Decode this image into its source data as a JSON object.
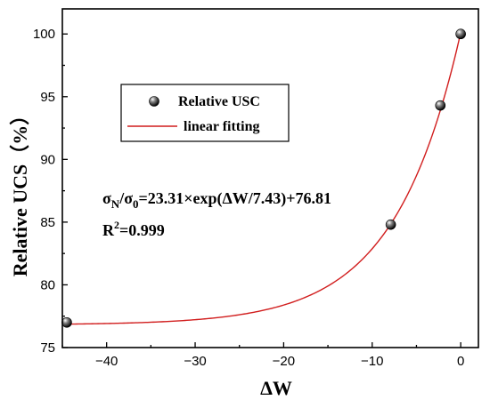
{
  "chart_data": {
    "type": "scatter",
    "title": "",
    "xlabel": "ΔW",
    "ylabel": "Relative UCS（%）",
    "xlim": [
      -45,
      2
    ],
    "ylim": [
      75,
      102
    ],
    "xticks": [
      -40,
      -30,
      -20,
      -10,
      0
    ],
    "yticks": [
      75,
      80,
      85,
      90,
      95,
      100
    ],
    "grid": false,
    "legend": {
      "placement": "upper-left",
      "entries": [
        "Relative USC",
        "linear fitting"
      ]
    },
    "series": [
      {
        "name": "Relative USC",
        "kind": "scatter",
        "color": "#000000",
        "x": [
          -44.5,
          -7.9,
          -2.3,
          0
        ],
        "y": [
          77.0,
          84.8,
          94.3,
          100.0
        ]
      },
      {
        "name": "linear fitting",
        "kind": "line",
        "color": "#d11d1d",
        "model": {
          "a": 23.31,
          "b": 7.43,
          "c": 76.81
        },
        "x_range": [
          -44.5,
          0
        ]
      }
    ],
    "annotations": [
      {
        "main": "σ",
        "sub": "N",
        "mid": "/σ",
        "sub2": "0",
        "rest": "=23.31×exp(ΔW/7.43)+76.81"
      },
      {
        "main": "R",
        "sup": "2",
        "rest": "=0.999"
      }
    ]
  }
}
